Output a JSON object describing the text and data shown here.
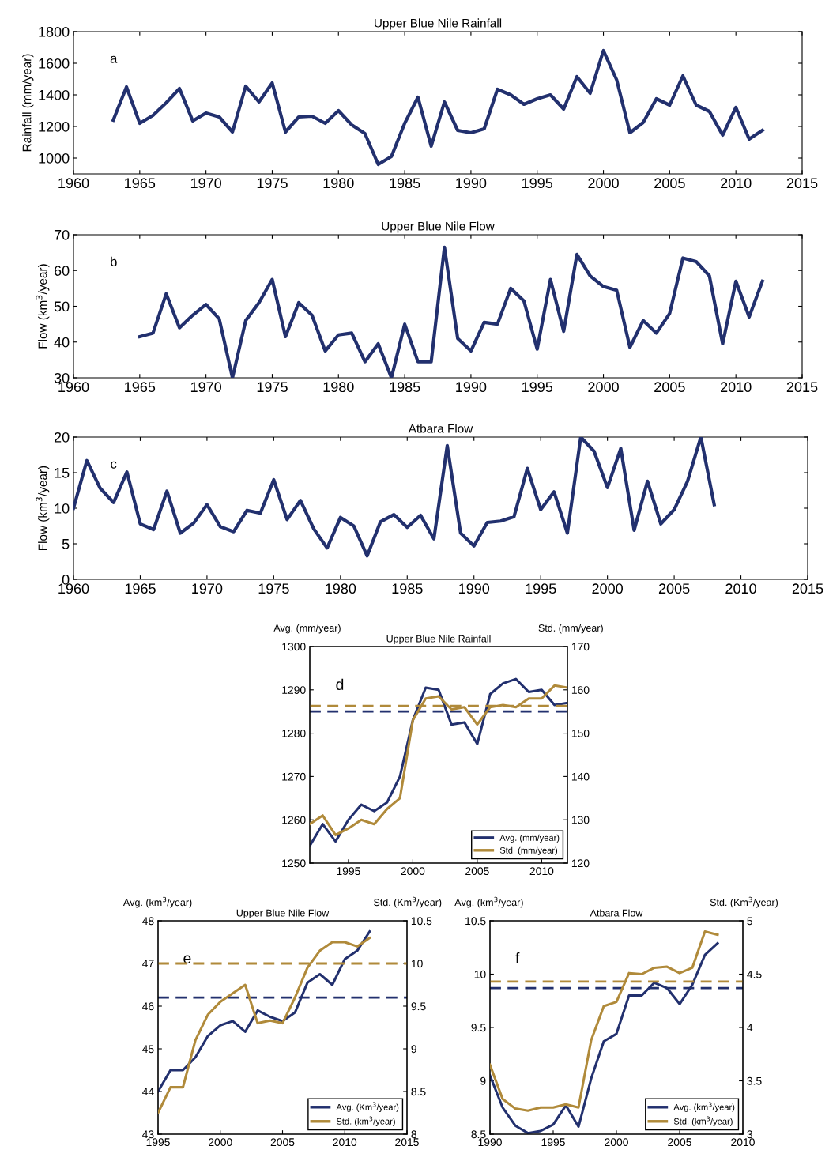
{
  "chart_data": [
    {
      "type": "line",
      "title": "Upper Blue Nile Rainfall",
      "ylabel": "Rainfall (mm/year)",
      "annotations": [
        "a"
      ],
      "xlim": [
        1960,
        2015
      ],
      "xticks": [
        1960,
        1965,
        1970,
        1975,
        1980,
        1985,
        1990,
        1995,
        2000,
        2005,
        2010,
        2015
      ],
      "ylim": [
        900,
        1800
      ],
      "yticks": [
        1000,
        1200,
        1400,
        1600,
        1800
      ],
      "grid": false,
      "legend": false,
      "x": [
        1963,
        1964,
        1965,
        1966,
        1967,
        1968,
        1969,
        1970,
        1971,
        1972,
        1973,
        1974,
        1975,
        1976,
        1977,
        1978,
        1979,
        1980,
        1981,
        1982,
        1983,
        1984,
        1985,
        1986,
        1987,
        1988,
        1989,
        1990,
        1991,
        1992,
        1993,
        1994,
        1995,
        1996,
        1997,
        1998,
        1999,
        2000,
        2001,
        2002,
        2003,
        2004,
        2005,
        2006,
        2007,
        2008,
        2009,
        2010,
        2011,
        2012
      ],
      "series": [
        {
          "color": "#22306e",
          "values": [
            1240,
            1450,
            1220,
            1270,
            1350,
            1440,
            1235,
            1285,
            1260,
            1165,
            1455,
            1355,
            1475,
            1165,
            1260,
            1265,
            1220,
            1300,
            1210,
            1155,
            960,
            1010,
            1220,
            1385,
            1075,
            1355,
            1175,
            1160,
            1185,
            1435,
            1400,
            1340,
            1375,
            1400,
            1310,
            1515,
            1410,
            1680,
            1495,
            1160,
            1225,
            1375,
            1335,
            1520,
            1335,
            1295,
            1145,
            1320,
            1120,
            1175
          ]
        }
      ]
    },
    {
      "type": "line",
      "title": "Upper Blue Nile Flow",
      "ylabel": "Flow (km$^{3}$/year)",
      "annotations": [
        "b"
      ],
      "xlim": [
        1960,
        2015
      ],
      "xticks": [
        1960,
        1965,
        1970,
        1975,
        1980,
        1985,
        1990,
        1995,
        2000,
        2005,
        2010,
        2015
      ],
      "ylim": [
        30,
        70
      ],
      "yticks": [
        30,
        40,
        50,
        60,
        70
      ],
      "grid": false,
      "legend": false,
      "x": [
        1965,
        1966,
        1967,
        1968,
        1969,
        1970,
        1971,
        1972,
        1973,
        1974,
        1975,
        1976,
        1977,
        1978,
        1979,
        1980,
        1981,
        1982,
        1983,
        1984,
        1985,
        1986,
        1987,
        1988,
        1989,
        1990,
        1991,
        1992,
        1993,
        1994,
        1995,
        1996,
        1997,
        1998,
        1999,
        2000,
        2001,
        2002,
        2003,
        2004,
        2005,
        2006,
        2007,
        2008,
        2009,
        2010,
        2011,
        2012
      ],
      "series": [
        {
          "color": "#22306e",
          "values": [
            41.5,
            42.5,
            53.5,
            44,
            47.5,
            50.5,
            46.5,
            30,
            46,
            51,
            57.5,
            41.5,
            51,
            47.5,
            37.5,
            42,
            42.5,
            34.5,
            39.5,
            30,
            45,
            34.5,
            34.5,
            66.5,
            41,
            37.5,
            45.5,
            45,
            55,
            51.5,
            38,
            57.5,
            43,
            64.5,
            58.5,
            55.5,
            54.5,
            38.5,
            46,
            42.5,
            48,
            63.5,
            62.5,
            58.5,
            39.5,
            57,
            47,
            57
          ]
        }
      ]
    },
    {
      "type": "line",
      "title": "Atbara Flow",
      "ylabel": "Flow (km$^{3}$/year)",
      "annotations": [
        "c"
      ],
      "xlim": [
        1960,
        2015
      ],
      "xticks": [
        1960,
        1965,
        1970,
        1975,
        1980,
        1985,
        1990,
        1995,
        2000,
        2005,
        2010,
        2015
      ],
      "ylim": [
        0,
        20
      ],
      "yticks": [
        0,
        5,
        10,
        15,
        20
      ],
      "grid": false,
      "legend": false,
      "x": [
        1960,
        1961,
        1962,
        1963,
        1964,
        1965,
        1966,
        1967,
        1968,
        1969,
        1970,
        1971,
        1972,
        1973,
        1974,
        1975,
        1976,
        1977,
        1978,
        1979,
        1980,
        1981,
        1982,
        1983,
        1984,
        1985,
        1986,
        1987,
        1988,
        1989,
        1990,
        1991,
        1992,
        1993,
        1994,
        1995,
        1996,
        1997,
        1998,
        1999,
        2000,
        2001,
        2002,
        2003,
        2004,
        2005,
        2006,
        2007,
        2008
      ],
      "series": [
        {
          "color": "#22306e",
          "values": [
            10,
            16.7,
            12.8,
            10.8,
            15.1,
            7.8,
            7,
            12.4,
            6.5,
            7.9,
            10.5,
            7.4,
            6.7,
            9.7,
            9.3,
            14,
            8.4,
            11.1,
            7.1,
            4.4,
            8.7,
            7.5,
            3.3,
            8.1,
            9.1,
            7.3,
            9,
            5.7,
            18.8,
            6.5,
            4.7,
            8,
            8.2,
            8.8,
            15.6,
            9.8,
            12.3,
            6.5,
            20,
            18,
            12.9,
            18.4,
            6.9,
            13.8,
            7.8,
            9.8,
            13.8,
            20,
            10.5
          ]
        }
      ]
    },
    {
      "type": "line",
      "title": "Upper Blue Nile Rainfall",
      "ylabel": "Avg. (mm/year)",
      "y2label": "Std. (mm/year)",
      "annotations": [
        "d"
      ],
      "xlim": [
        1992,
        2012
      ],
      "xticks": [
        1995,
        2000,
        2005,
        2010
      ],
      "ylim": [
        1250,
        1300
      ],
      "yticks": [
        1250,
        1260,
        1270,
        1280,
        1290,
        1300
      ],
      "y2lim": [
        120,
        170
      ],
      "y2ticks": [
        120,
        130,
        140,
        150,
        160,
        170
      ],
      "grid": false,
      "legend": "bottom right",
      "x": [
        1992,
        1993,
        1994,
        1995,
        1996,
        1997,
        1998,
        1999,
        2000,
        2001,
        2002,
        2003,
        2004,
        2005,
        2006,
        2007,
        2008,
        2009,
        2010,
        2011,
        2012
      ],
      "series": [
        {
          "name": "Avg. (mm/year)",
          "color": "#22306e",
          "values": [
            1254,
            1259,
            1255,
            1260,
            1263.5,
            1262,
            1264,
            1270,
            1283,
            1290.5,
            1290,
            1282,
            1282.5,
            1277.5,
            1289,
            1291.5,
            1292.5,
            1289.5,
            1290,
            1286.5,
            1287
          ]
        },
        {
          "name": "Std. (mm/year)",
          "color": "#b08a3a",
          "axis": "y2",
          "values": [
            129,
            131,
            126.5,
            128,
            130,
            129,
            132.5,
            135,
            153,
            158,
            158.5,
            155.5,
            156,
            152,
            156,
            156.5,
            156,
            158,
            158,
            161,
            160.5
          ]
        }
      ],
      "ref_lines": [
        {
          "axis": "y",
          "value": 1285,
          "color": "#22306e",
          "line_style": "dashed"
        },
        {
          "axis": "y2",
          "value": 156.3,
          "color": "#b08a3a",
          "line_style": "dashed"
        }
      ]
    },
    {
      "type": "line",
      "title": "Upper Blue Nile Flow",
      "ylabel": "Avg. (km$^{3}$/year)",
      "y2label": "Std. (Km$^{3}$/year)",
      "annotations": [
        "e"
      ],
      "xlim": [
        1995,
        2015
      ],
      "xticks": [
        1995,
        2000,
        2005,
        2010,
        2015
      ],
      "ylim": [
        43,
        48
      ],
      "yticks": [
        43,
        44,
        45,
        46,
        47,
        48
      ],
      "y2lim": [
        8,
        10.5
      ],
      "y2ticks": [
        8,
        8.5,
        9,
        9.5,
        10,
        10.5
      ],
      "grid": false,
      "legend": "bottom right",
      "x": [
        1995,
        1996,
        1997,
        1998,
        1999,
        2000,
        2001,
        2002,
        2003,
        2004,
        2005,
        2006,
        2007,
        2008,
        2009,
        2010,
        2011,
        2012
      ],
      "series": [
        {
          "name": "Avg. (Km$^{3}$/year)",
          "color": "#22306e",
          "values": [
            44,
            44.5,
            44.5,
            44.8,
            45.3,
            45.55,
            45.65,
            45.4,
            45.9,
            45.75,
            45.65,
            45.85,
            46.55,
            46.75,
            46.5,
            47.1,
            47.3,
            47.75
          ]
        },
        {
          "name": "Std. (km$^{3}$/year)",
          "color": "#b08a3a",
          "axis": "y2",
          "values": [
            8.25,
            8.55,
            8.55,
            9.1,
            9.4,
            9.55,
            9.65,
            9.75,
            9.3,
            9.33,
            9.3,
            9.6,
            9.95,
            10.15,
            10.25,
            10.25,
            10.2,
            10.3
          ]
        }
      ],
      "ref_lines": [
        {
          "axis": "y",
          "value": 46.2,
          "color": "#22306e",
          "line_style": "dashed"
        },
        {
          "axis": "y2",
          "value": 10,
          "color": "#b08a3a",
          "line_style": "dashed"
        }
      ]
    },
    {
      "type": "line",
      "title": "Atbara Flow",
      "ylabel": "Avg. (km$^{3}$/year)",
      "y2label": "Std. (Km$^{3}$/year)",
      "annotations": [
        "f"
      ],
      "xlim": [
        1990,
        2010
      ],
      "xticks": [
        1990,
        1995,
        2000,
        2005,
        2010
      ],
      "ylim": [
        8.5,
        10.5
      ],
      "yticks": [
        8.5,
        9,
        9.5,
        10,
        10.5
      ],
      "y2lim": [
        3,
        5
      ],
      "y2ticks": [
        3,
        3.5,
        4,
        4.5,
        5
      ],
      "grid": false,
      "legend": "bottom right",
      "x": [
        1990,
        1991,
        1992,
        1993,
        1994,
        1995,
        1996,
        1997,
        1998,
        1999,
        2000,
        2001,
        2002,
        2003,
        2004,
        2005,
        2006,
        2007,
        2008
      ],
      "series": [
        {
          "name": "Avg. (km$^{3}$/year)",
          "color": "#22306e",
          "values": [
            9.05,
            8.75,
            8.58,
            8.51,
            8.53,
            8.59,
            8.77,
            8.57,
            9.02,
            9.37,
            9.44,
            9.8,
            9.8,
            9.92,
            9.87,
            9.72,
            9.9,
            10.18,
            10.29
          ]
        },
        {
          "name": "Std. (km$^{3}$/year)",
          "color": "#b08a3a",
          "axis": "y2",
          "values": [
            3.65,
            3.33,
            3.24,
            3.22,
            3.25,
            3.25,
            3.28,
            3.25,
            3.88,
            4.2,
            4.24,
            4.51,
            4.5,
            4.56,
            4.57,
            4.51,
            4.56,
            4.9,
            4.87
          ]
        }
      ],
      "ref_lines": [
        {
          "axis": "y",
          "value": 9.87,
          "color": "#22306e",
          "line_style": "dashed"
        },
        {
          "axis": "y2",
          "value": 4.43,
          "color": "#b08a3a",
          "line_style": "dashed"
        }
      ]
    }
  ]
}
